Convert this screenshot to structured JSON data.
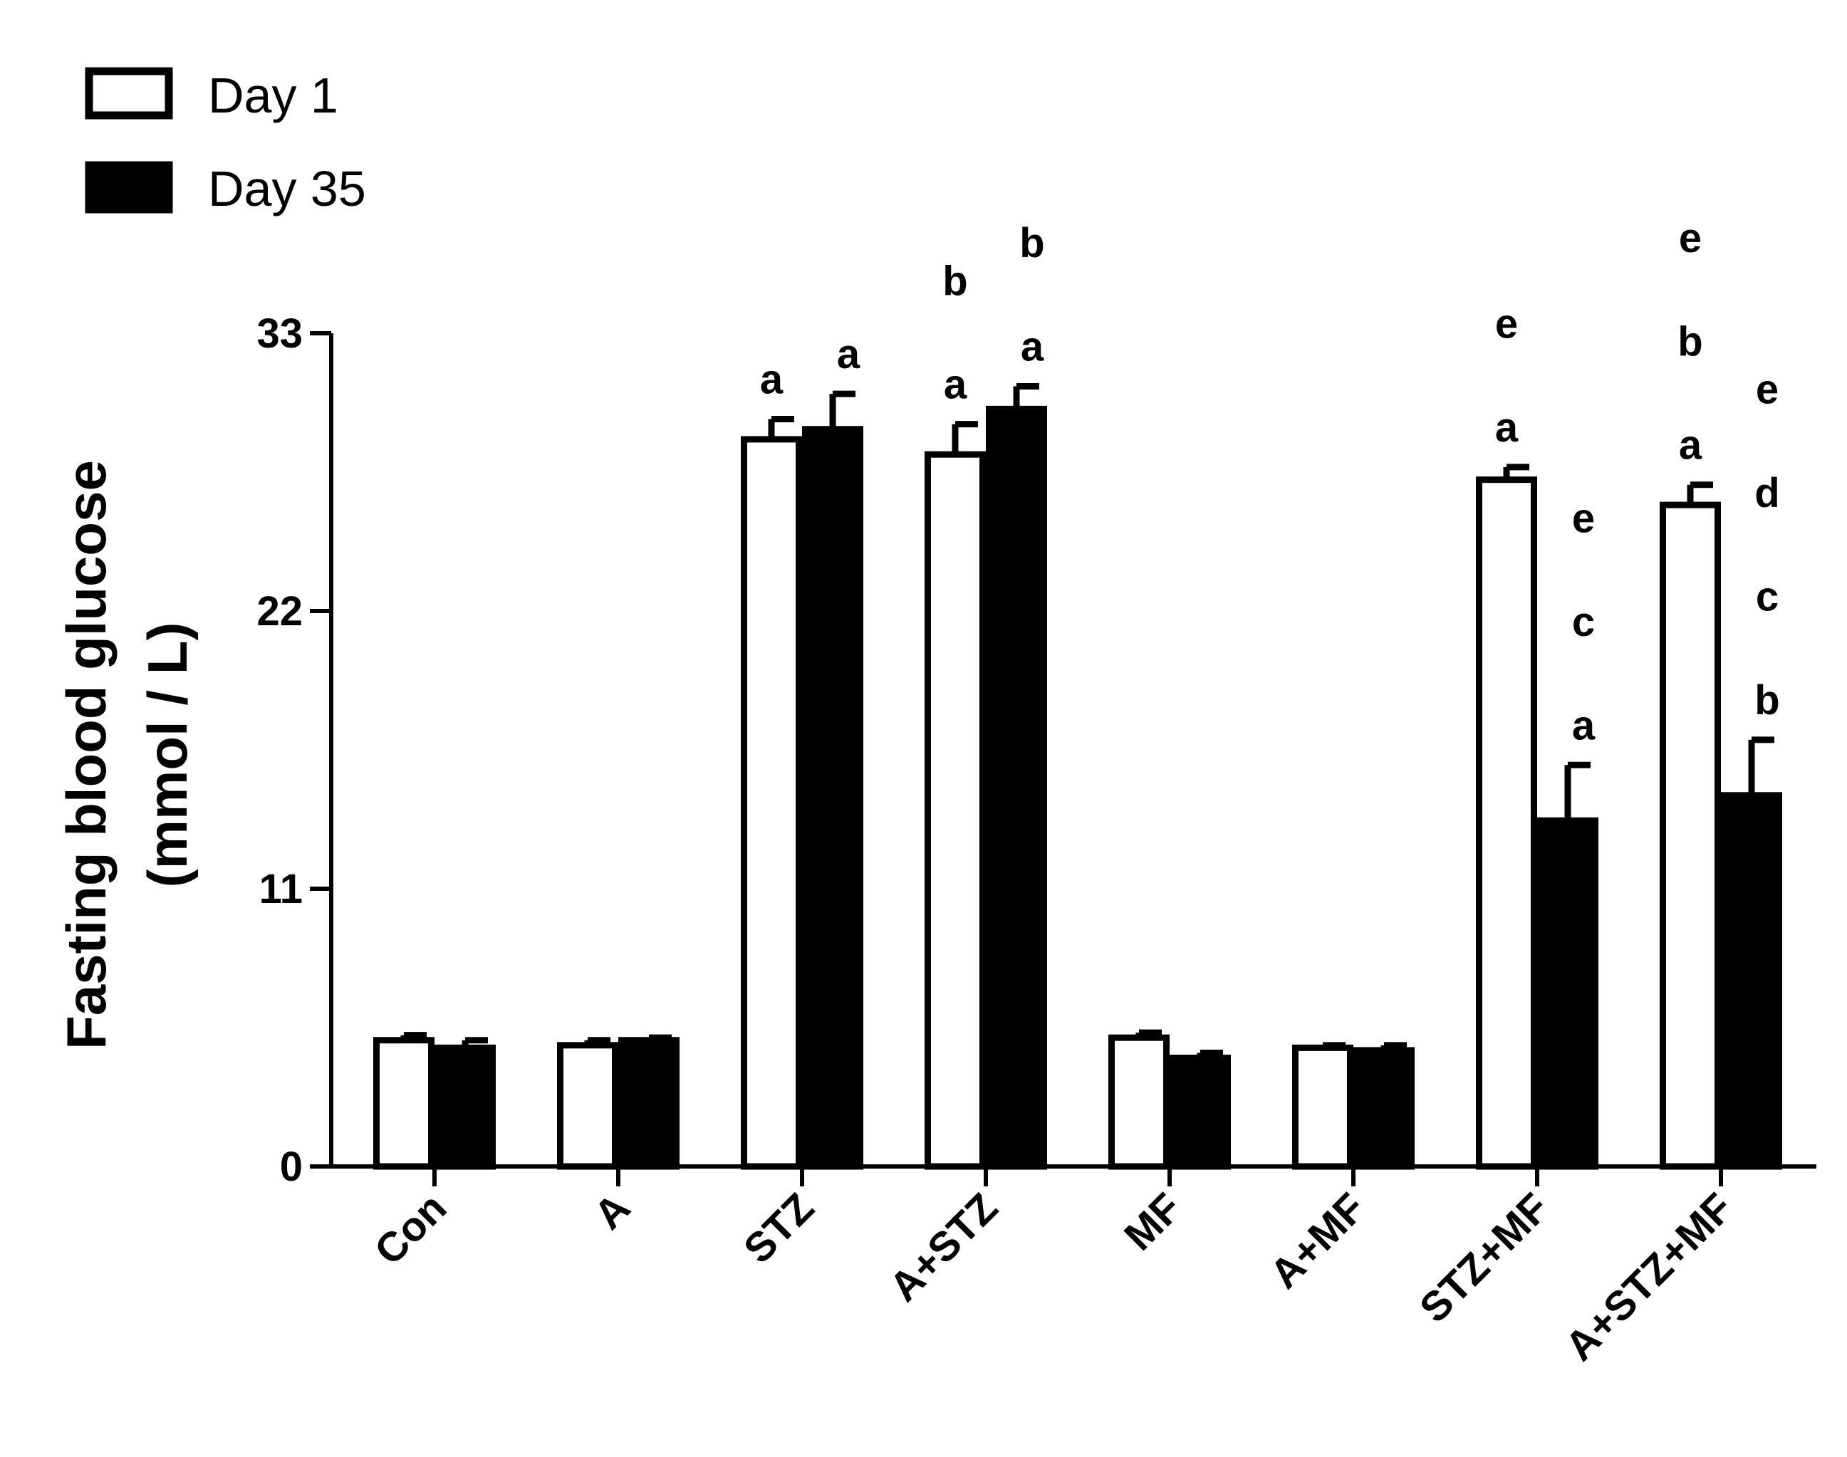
{
  "chart_data": {
    "type": "bar",
    "title": "",
    "xlabel": "",
    "ylabel_lines": [
      "Fasting blood glucose",
      "(mmol / L)"
    ],
    "ylim": [
      0,
      33
    ],
    "yticks": [
      "0",
      "11",
      "22",
      "33"
    ],
    "ytick_values": [
      0,
      11,
      22,
      33
    ],
    "categories": [
      "Con",
      "A",
      "STZ",
      "A+STZ",
      "MF",
      "A+MF",
      "STZ+MF",
      "A+STZ+MF"
    ],
    "legend_placement": "top-left",
    "series": [
      {
        "name": "Day 1",
        "style": "open",
        "values": [
          5.0,
          4.8,
          28.8,
          28.2,
          5.1,
          4.7,
          27.2,
          26.2
        ],
        "errors": [
          0.2,
          0.2,
          0.8,
          1.2,
          0.2,
          0.1,
          0.5,
          0.8
        ],
        "significance": [
          [],
          [],
          [
            "a"
          ],
          [
            "a",
            "b"
          ],
          [],
          [],
          [
            "a",
            "e"
          ],
          [
            "a",
            "b",
            "e"
          ]
        ]
      },
      {
        "name": "Day 35",
        "style": "solid",
        "values": [
          4.7,
          5.0,
          29.2,
          30.0,
          4.3,
          4.6,
          13.7,
          14.7
        ],
        "errors": [
          0.3,
          0.1,
          1.4,
          0.9,
          0.2,
          0.2,
          2.2,
          2.2
        ],
        "significance": [
          [],
          [],
          [
            "a"
          ],
          [
            "a",
            "b"
          ],
          [],
          [],
          [
            "a",
            "c",
            "e"
          ],
          [
            "b",
            "c",
            "d",
            "e"
          ]
        ]
      }
    ]
  }
}
